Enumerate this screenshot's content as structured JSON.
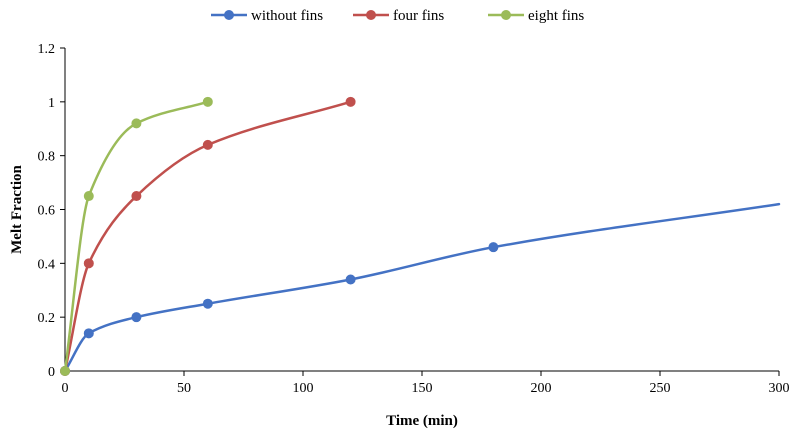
{
  "chart_data": {
    "type": "line",
    "title": "",
    "xlabel": "Time (min)",
    "ylabel": "Melt Fraction",
    "xlim": [
      0,
      300
    ],
    "ylim": [
      0,
      1.2
    ],
    "xticks": [
      "0",
      "50",
      "100",
      "150",
      "200",
      "250",
      "300"
    ],
    "yticks": [
      "0",
      "0.2",
      "0.4",
      "0.6",
      "0.8",
      "1",
      "1.2"
    ],
    "grid": false,
    "legend_position": "top",
    "series": [
      {
        "name": "without fins",
        "color": "#4472C4",
        "x": [
          0,
          10,
          30,
          60,
          120,
          180
        ],
        "y": [
          0,
          0.14,
          0.2,
          0.25,
          0.34,
          0.46
        ],
        "line_continues_to": {
          "x": 300,
          "y": 0.62
        }
      },
      {
        "name": "four fins",
        "color": "#C0504D",
        "x": [
          0,
          10,
          30,
          60,
          120
        ],
        "y": [
          0,
          0.4,
          0.65,
          0.84,
          1.0
        ]
      },
      {
        "name": "eight fins",
        "color": "#9BBB59",
        "x": [
          0,
          10,
          30,
          60
        ],
        "y": [
          0,
          0.65,
          0.92,
          1.0
        ]
      }
    ]
  }
}
